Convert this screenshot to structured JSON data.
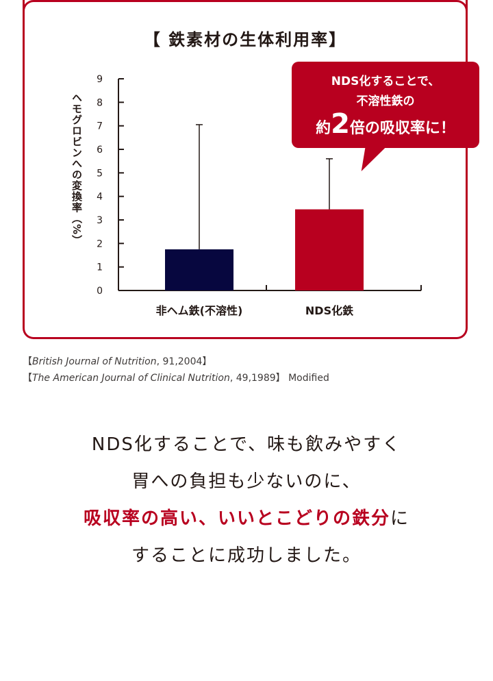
{
  "chart_data": {
    "type": "bar",
    "title": "【 鉄素材の生体利用率】",
    "ylabel": "ヘモグロビンへの変換率（%）",
    "ylim": [
      0,
      9
    ],
    "yticks": [
      "0",
      "1",
      "2",
      "3",
      "4",
      "5",
      "6",
      "7",
      "8",
      "9"
    ],
    "categories": [
      "非ヘム鉄(不溶性)",
      "NDS化鉄"
    ],
    "values": [
      1.75,
      3.45
    ],
    "errors_upper": [
      7.05,
      5.6
    ],
    "colors": [
      "#07073f",
      "#b8001f"
    ]
  },
  "callout": {
    "line1": "NDS化することで、",
    "line2": "不溶性鉄の",
    "line3_pre": "約",
    "line3_big": "2",
    "line3_post": "倍の吸収率に！"
  },
  "sources": {
    "s1_open": "【",
    "s1_journal": "British Journal of Nutrition",
    "s1_rest": ", 91,2004】",
    "s2_open": "【",
    "s2_journal": "The American Journal of Clinical Nutrition",
    "s2_rest": ", 49,1989】 Modified"
  },
  "body": {
    "line1": "NDS化することで、味も飲みやすく",
    "line2": "胃への負担も少ないのに、",
    "line3_red": "吸収率の高い、いいとこどりの鉄分",
    "line3_post": "に",
    "line4": "することに成功しました。"
  },
  "colors": {
    "accent": "#b8001f",
    "navy": "#07073f"
  }
}
